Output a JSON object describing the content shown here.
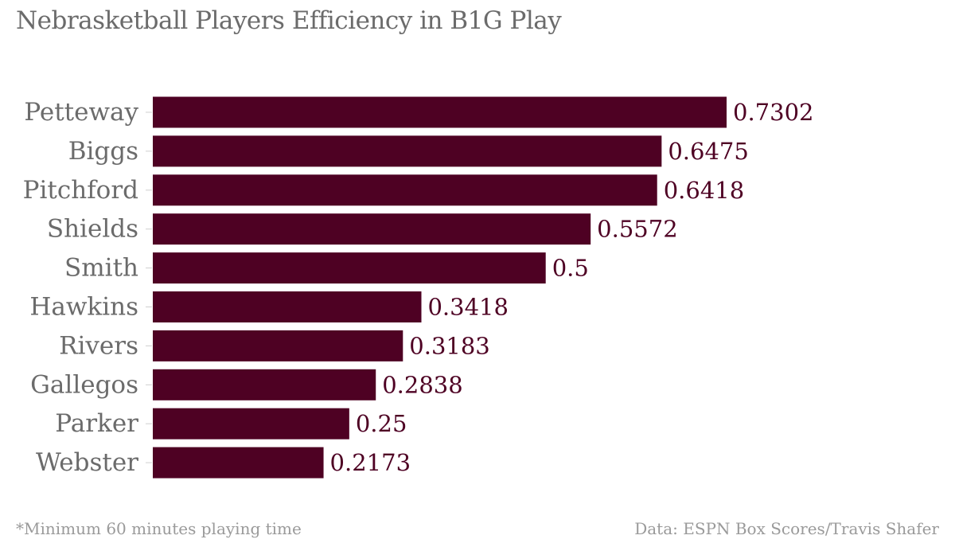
{
  "chart_data": {
    "type": "bar",
    "orientation": "horizontal",
    "title": "Nebrasketball Players Efficiency in B1G Play",
    "categories": [
      "Petteway",
      "Biggs",
      "Pitchford",
      "Shields",
      "Smith",
      "Hawkins",
      "Rivers",
      "Gallegos",
      "Parker",
      "Webster"
    ],
    "values": [
      0.7302,
      0.6475,
      0.6418,
      0.5572,
      0.5,
      0.3418,
      0.3183,
      0.2838,
      0.25,
      0.2173
    ],
    "value_labels": [
      "0.7302",
      "0.6475",
      "0.6418",
      "0.5572",
      "0.5",
      "0.3418",
      "0.3183",
      "0.2838",
      "0.25",
      "0.2173"
    ],
    "xlim": [
      0,
      0.7302
    ],
    "grid": false,
    "bar_color": "#4e0123"
  },
  "footnote": "*Minimum 60 minutes playing time",
  "source": "Data: ESPN Box Scores/Travis Shafer"
}
